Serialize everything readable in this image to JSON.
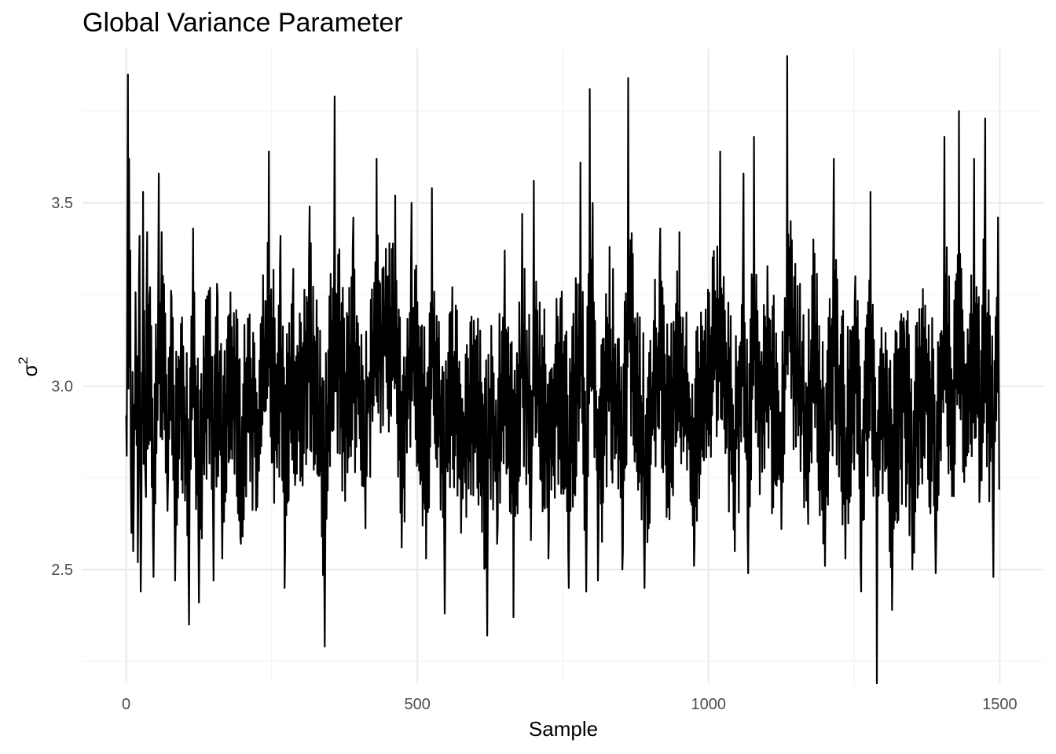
{
  "chart_data": {
    "type": "line",
    "title": "Global Variance Parameter",
    "xlabel": "Sample",
    "ylabel": "σ",
    "ylabel_superscript": "2",
    "xlim": [
      -75,
      1575
    ],
    "ylim": [
      2.19,
      3.92
    ],
    "x_ticks": [
      0,
      500,
      1000,
      1500
    ],
    "x_tick_labels": [
      "0",
      "500",
      "1000",
      "1500"
    ],
    "y_ticks": [
      2.5,
      3.0,
      3.5
    ],
    "y_tick_labels": [
      "2.5",
      "3.0",
      "3.5"
    ],
    "grid": true,
    "series": [
      {
        "n_samples": 1500,
        "x": [
          0,
          3,
          5,
          7,
          9,
          12,
          14,
          17,
          20,
          23,
          25,
          29,
          33,
          36,
          41,
          47,
          56,
          61,
          71,
          78,
          84,
          94,
          108,
          115,
          125,
          142,
          150,
          157,
          165,
          185,
          197,
          210,
          225,
          245,
          258,
          265,
          272,
          287,
          290,
          315,
          341,
          358,
          375,
          390,
          410,
          430,
          462,
          473,
          490,
          515,
          525,
          547,
          560,
          575,
          598,
          620,
          625,
          637,
          650,
          665,
          680,
          695,
          700,
          725,
          735,
          746,
          760,
          780,
          790,
          796,
          801,
          810,
          830,
          852,
          862,
          890,
          917,
          930,
          950,
          975,
          1020,
          1045,
          1060,
          1068,
          1078,
          1087,
          1102,
          1125,
          1135,
          1170,
          1180,
          1200,
          1215,
          1235,
          1252,
          1262,
          1278,
          1289,
          1298,
          1315,
          1336,
          1350,
          1372,
          1390,
          1405,
          1418,
          1430,
          1441,
          1456,
          1466,
          1475,
          1489,
          1497
        ],
        "values": [
          2.92,
          3.85,
          3.62,
          3.37,
          2.6,
          2.55,
          2.95,
          3.05,
          2.52,
          3.41,
          2.44,
          3.53,
          2.75,
          3.42,
          3.27,
          2.48,
          3.58,
          3.42,
          2.66,
          3.24,
          2.47,
          3.17,
          2.35,
          3.43,
          2.41,
          3.26,
          2.47,
          3.24,
          2.53,
          3.2,
          2.57,
          3.18,
          2.67,
          3.64,
          2.84,
          3.41,
          2.45,
          3.32,
          2.73,
          3.49,
          2.29,
          3.79,
          2.93,
          3.46,
          2.74,
          3.62,
          3.52,
          2.56,
          3.5,
          2.53,
          3.54,
          2.38,
          3.27,
          2.6,
          3.0,
          2.32,
          2.98,
          2.57,
          3.37,
          2.37,
          3.47,
          2.58,
          3.56,
          2.53,
          3.06,
          3.24,
          2.45,
          3.61,
          2.44,
          3.81,
          3.5,
          2.47,
          3.38,
          2.5,
          3.84,
          2.45,
          3.43,
          2.67,
          3.42,
          2.51,
          3.64,
          2.55,
          3.58,
          2.49,
          3.68,
          3.12,
          3.18,
          2.61,
          3.9,
          2.72,
          3.4,
          2.51,
          3.62,
          2.53,
          3.3,
          2.44,
          3.53,
          2.19,
          3.0,
          2.39,
          3.14,
          2.5,
          3.22,
          2.49,
          3.68,
          2.7,
          3.75,
          2.8,
          3.62,
          2.75,
          3.73,
          2.48,
          3.46
        ]
      }
    ]
  }
}
